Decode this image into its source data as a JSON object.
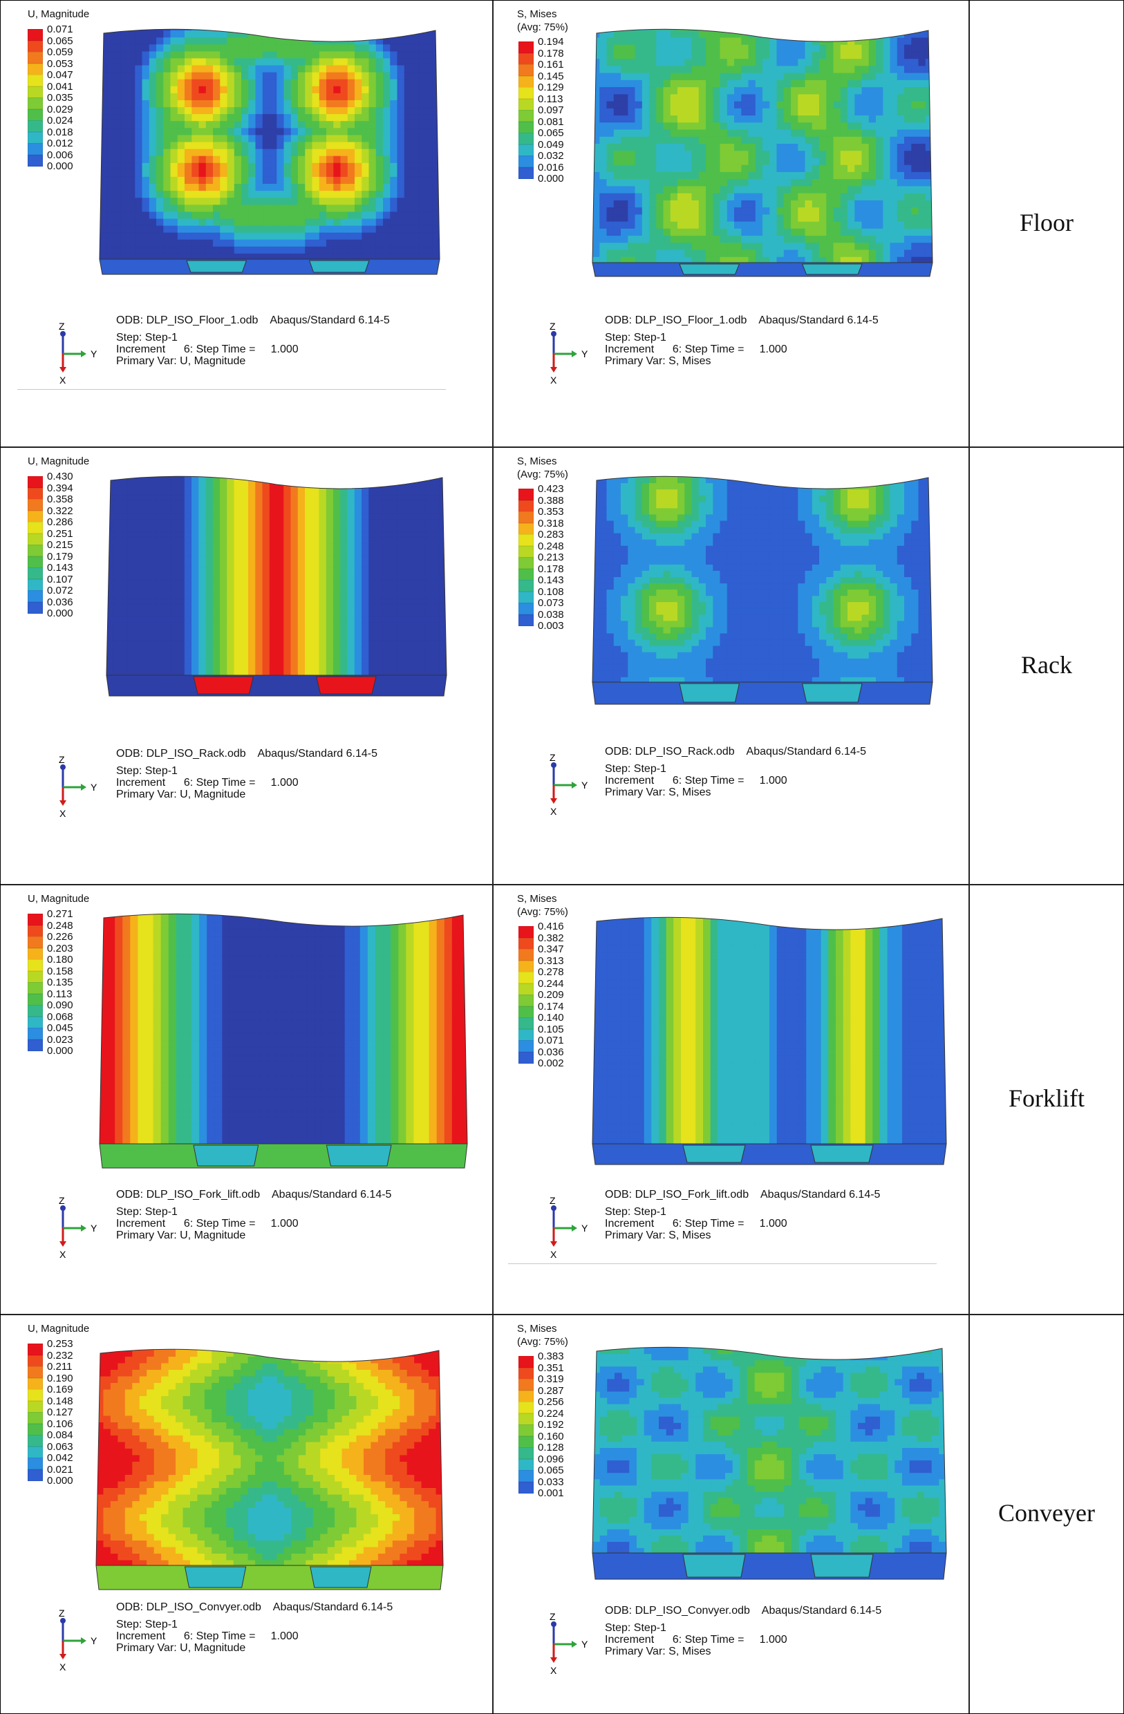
{
  "columns": [
    "U, Magnitude",
    "S, Mises"
  ],
  "rows": [
    {
      "label": "Floor",
      "u": {
        "title": "U, Magnitude",
        "values": [
          "0.071",
          "0.065",
          "0.059",
          "0.053",
          "0.047",
          "0.041",
          "0.035",
          "0.029",
          "0.024",
          "0.018",
          "0.012",
          "0.006",
          "0.000"
        ],
        "odb_line": "ODB: DLP_ISO_Floor_1.odb    Abaqus/Standard 6.14-5",
        "step_line": "Step: Step-1",
        "increment_line": "Increment      6: Step Time =     1.000",
        "primary_line": "Primary Var: U, Magnitude"
      },
      "s": {
        "title": "S, Mises",
        "avg": "(Avg: 75%)",
        "values": [
          "0.194",
          "0.178",
          "0.161",
          "0.145",
          "0.129",
          "0.113",
          "0.097",
          "0.081",
          "0.065",
          "0.049",
          "0.032",
          "0.016",
          "0.000"
        ],
        "odb_line": "ODB: DLP_ISO_Floor_1.odb    Abaqus/Standard 6.14-5",
        "step_line": "Step: Step-1",
        "increment_line": "Increment      6: Step Time =     1.000",
        "primary_line": "Primary Var: S, Mises"
      }
    },
    {
      "label": "Rack",
      "u": {
        "title": "U, Magnitude",
        "values": [
          "0.430",
          "0.394",
          "0.358",
          "0.322",
          "0.286",
          "0.251",
          "0.215",
          "0.179",
          "0.143",
          "0.107",
          "0.072",
          "0.036",
          "0.000"
        ],
        "odb_line": "ODB: DLP_ISO_Rack.odb    Abaqus/Standard 6.14-5",
        "step_line": "Step: Step-1",
        "increment_line": "Increment      6: Step Time =     1.000",
        "primary_line": "Primary Var: U, Magnitude"
      },
      "s": {
        "title": "S, Mises",
        "avg": "(Avg: 75%)",
        "values": [
          "0.423",
          "0.388",
          "0.353",
          "0.318",
          "0.283",
          "0.248",
          "0.213",
          "0.178",
          "0.143",
          "0.108",
          "0.073",
          "0.038",
          "0.003"
        ],
        "odb_line": "ODB: DLP_ISO_Rack.odb    Abaqus/Standard 6.14-5",
        "step_line": "Step: Step-1",
        "increment_line": "Increment      6: Step Time =     1.000",
        "primary_line": "Primary Var: S, Mises"
      }
    },
    {
      "label": "Forklift",
      "u": {
        "title": "U, Magnitude",
        "values": [
          "0.271",
          "0.248",
          "0.226",
          "0.203",
          "0.180",
          "0.158",
          "0.135",
          "0.113",
          "0.090",
          "0.068",
          "0.045",
          "0.023",
          "0.000"
        ],
        "odb_line": "ODB: DLP_ISO_Fork_lift.odb    Abaqus/Standard 6.14-5",
        "step_line": "Step: Step-1",
        "increment_line": "Increment      6: Step Time =     1.000",
        "primary_line": "Primary Var: U, Magnitude"
      },
      "s": {
        "title": "S, Mises",
        "avg": "(Avg: 75%)",
        "values": [
          "0.416",
          "0.382",
          "0.347",
          "0.313",
          "0.278",
          "0.244",
          "0.209",
          "0.174",
          "0.140",
          "0.105",
          "0.071",
          "0.036",
          "0.002"
        ],
        "odb_line": "ODB: DLP_ISO_Fork_lift.odb    Abaqus/Standard 6.14-5",
        "step_line": "Step: Step-1",
        "increment_line": "Increment      6: Step Time =     1.000",
        "primary_line": "Primary Var: S, Mises"
      }
    },
    {
      "label": "Conveyer",
      "u": {
        "title": "U, Magnitude",
        "values": [
          "0.253",
          "0.232",
          "0.211",
          "0.190",
          "0.169",
          "0.148",
          "0.127",
          "0.106",
          "0.084",
          "0.063",
          "0.042",
          "0.021",
          "0.000"
        ],
        "odb_line": "ODB: DLP_ISO_Convyer.odb    Abaqus/Standard 6.14-5",
        "step_line": "Step: Step-1",
        "increment_line": "Increment      6: Step Time =     1.000",
        "primary_line": "Primary Var: U, Magnitude"
      },
      "s": {
        "title": "S, Mises",
        "avg": "(Avg: 75%)",
        "values": [
          "0.383",
          "0.351",
          "0.319",
          "0.287",
          "0.256",
          "0.224",
          "0.192",
          "0.160",
          "0.128",
          "0.096",
          "0.065",
          "0.033",
          "0.001"
        ],
        "odb_line": "ODB: DLP_ISO_Convyer.odb    Abaqus/Standard 6.14-5",
        "step_line": "Step: Step-1",
        "increment_line": "Increment      6: Step Time =     1.000",
        "primary_line": "Primary Var: S, Mises"
      }
    }
  ],
  "triad": {
    "z": "Z",
    "y": "Y",
    "x": "X"
  },
  "colors": {
    "legend": [
      "#e8141c",
      "#ee4a1e",
      "#f27a1e",
      "#f5b21a",
      "#e6e21c",
      "#b9d824",
      "#7ecb35",
      "#4fbf4a",
      "#35b98a",
      "#2fb7c6",
      "#2c8ee0",
      "#2f5fd0",
      "#2e3fa8"
    ],
    "border": "#222222",
    "axis_z": "#2b3aa8",
    "axis_y": "#2ea33a",
    "axis_x": "#d01b1b"
  }
}
